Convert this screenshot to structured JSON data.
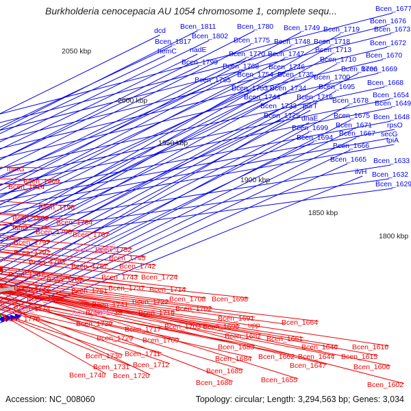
{
  "title": "Burkholderia cenocepacia AU 1054 chromosome 1, complete sequ...",
  "footer": {
    "accession": "Accession: NC_008060",
    "summary": "Topology: circular; Length: 3,294,563 bp; Genes: 3,034"
  },
  "colors": {
    "plus_strand": "#0000ee",
    "minus_strand": "#ee0000",
    "rna": "#ee88cc",
    "backbone": "#888888",
    "tick": "#2a8a2a"
  },
  "ticks": [
    "2050 kbp",
    "2000 kbp",
    "1950 kbp",
    "1900 kbp",
    "1850 kbp",
    "1800 kbp"
  ],
  "plus_labels": [
    "Bcen_1677",
    "Bcen_1676",
    "Bcen_1673",
    "Bcen_1672",
    "Bcen_1670",
    "Bcen_1669",
    "Bcen_1668",
    "Bcen_1654",
    "Bcen_1649",
    "Bcen_1648",
    "rpsO",
    "secG",
    "tpiA",
    "Bcen_1633",
    "Bcen_1632",
    "Bcen_1629",
    "dcd",
    "Bcen_1817",
    "hemC",
    "Bcen_1811",
    "Bcen_1802",
    "nadE",
    "Bcen_1799",
    "Bcen_1785",
    "Bcen_1780",
    "Bcen_1775",
    "Bcen_1770",
    "Bcen_1768",
    "Bcen_1754",
    "Bcen_1753",
    "Bcen_1749",
    "Bcen_1748",
    "Bcen_1747",
    "Bcen_1746",
    "Bcen_1735",
    "Bcen_1734",
    "Bcen_1744",
    "Bcen_1733",
    "Bcen_1725",
    "Bcen_1719",
    "Bcen_1718",
    "Bcen_1713",
    "Bcen_1710",
    "Bcen_1706",
    "Bcen_1700",
    "Bcen_1716",
    "purT",
    "dnaE",
    "Bcen_1699",
    "Bcen_1694",
    "Bcen_1695",
    "Bcen_1678",
    "Bcen_1675",
    "Bcen_1671",
    "Bcen_1667",
    "Bcen_1666",
    "Bcen_1665",
    "ilvH"
  ],
  "minus_labels": [
    "metG",
    "Bcen_1814",
    "Bcen_1809",
    "Bcen_1798",
    "Bcen_1803",
    "fabG",
    "Bcen_1784",
    "Bcen_1797",
    "Bcen_1790",
    "Bcen_1767",
    "Bcen_1792",
    "Bcen_1783",
    "Bcen_1757",
    "Bcen_1752",
    "Bcen_1745",
    "Bcen_1787",
    "Bcen_1742",
    "Bcen_1762",
    "Bcen_1743",
    "Bcen_1724",
    "Bcen_1772",
    "Bcen_1751",
    "Bcen_1737",
    "Bcen_1714",
    "Bcen_1764",
    "Bcen_1741",
    "Bcen_1722",
    "Bcen_1708",
    "Bcen_1698",
    "Bcen_1774",
    "Bcen_1738",
    "Bcen_1715",
    "Bcen_1702",
    "Bcen_1776",
    "Bcen_1739",
    "Bcen_1717",
    "Bcen_1703",
    "Bcen_1691",
    "Bcen_1696",
    "upp",
    "Bcen_1729",
    "Bcen_1709",
    "Bcen_1682",
    "Bcen_1664",
    "Bcen_1683",
    "Bcen_1661",
    "Bcen_1711",
    "Bcen_1684",
    "Bcen_1662",
    "Bcen_1646",
    "Bcen_1616",
    "Bcen_1730",
    "Bcen_1644",
    "Bcen_1615",
    "Bcen_1731",
    "Bcen_1712",
    "Bcen_1685",
    "Bcen_1647",
    "Bcen_1606",
    "Bcen_1740",
    "Bcen_1720",
    "Bcen_1686",
    "Bcen_1655",
    "Bcen_1602"
  ],
  "rna_labels": [
    "Bcen_R0043",
    "Bcen_R0042"
  ]
}
